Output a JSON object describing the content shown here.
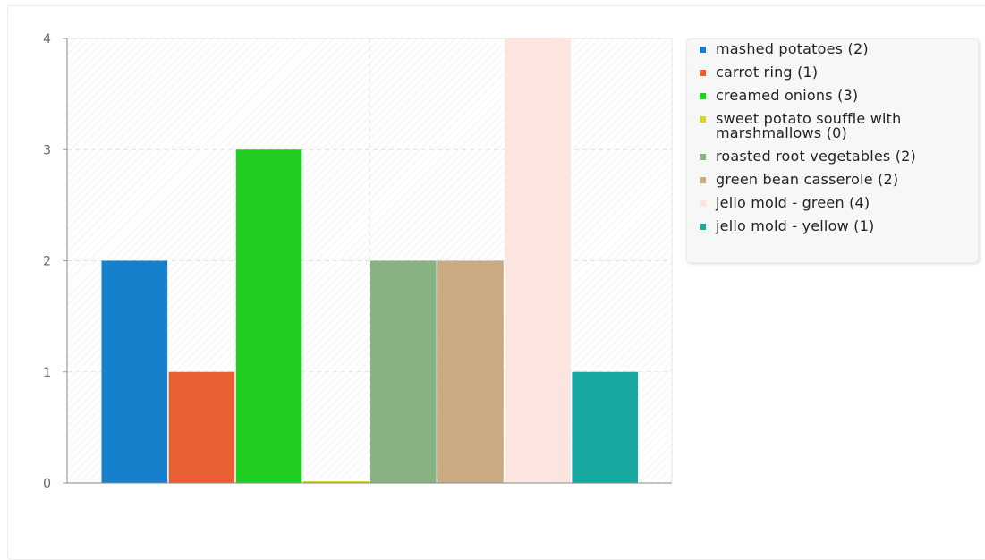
{
  "chart_data": {
    "type": "bar",
    "title": "",
    "xlabel": "",
    "ylabel": "",
    "ylim": [
      0,
      4
    ],
    "yticks": [
      0,
      1,
      2,
      3,
      4
    ],
    "grid": true,
    "legend_position": "right",
    "series": [
      {
        "name": "mashed potatoes (2)",
        "value": 2,
        "color": "#1580cb"
      },
      {
        "name": "carrot ring (1)",
        "value": 1,
        "color": "#e85f33"
      },
      {
        "name": "creamed onions (3)",
        "value": 3,
        "color": "#22cd22"
      },
      {
        "name": "sweet potato souffle with marshmallows (0)",
        "value": 0,
        "color": "#d6d42a"
      },
      {
        "name": "roasted root vegetables (2)",
        "value": 2,
        "color": "#87b281"
      },
      {
        "name": "green bean casserole (2)",
        "value": 2,
        "color": "#c9aa81"
      },
      {
        "name": "jello mold - green (4)",
        "value": 4,
        "color": "#fbe5de"
      },
      {
        "name": "jello mold - yellow (1)",
        "value": 1,
        "color": "#17a8a2"
      }
    ]
  }
}
